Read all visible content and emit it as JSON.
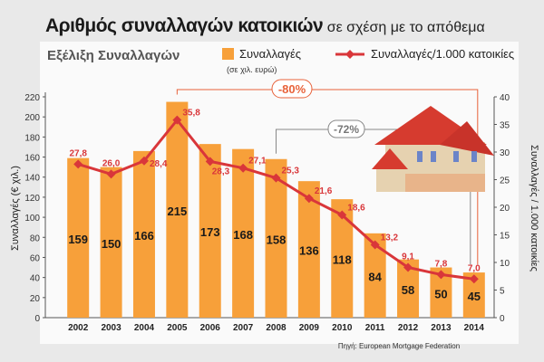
{
  "title_bold": "Αριθμός συναλλαγών κατοικιών",
  "title_rest": "σε σχέση με το απόθεμα",
  "chart_data": {
    "type": "bar+line",
    "subtitle": "Εξέλιξη Συναλλαγών",
    "categories": [
      "2002",
      "2003",
      "2004",
      "2005",
      "2006",
      "2007",
      "2008",
      "2009",
      "2010",
      "2011",
      "2012",
      "2013",
      "2014"
    ],
    "series": [
      {
        "name": "Συναλλαγές",
        "name_note": "(σε χιλ. ευρώ)",
        "type": "bar",
        "axis": "left",
        "color": "#f7a03a",
        "values": [
          159,
          150,
          166,
          215,
          173,
          168,
          158,
          136,
          118,
          84,
          58,
          50,
          45
        ]
      },
      {
        "name": "Συναλλαγές/1.000 κατοικίες",
        "type": "line",
        "axis": "right",
        "color": "#d9363a",
        "values": [
          27.8,
          26.0,
          28.4,
          35.8,
          28.3,
          27.1,
          25.3,
          21.6,
          18.6,
          13.2,
          9.1,
          7.8,
          7.0
        ],
        "labels": [
          "27,8",
          "26,0",
          "28,4",
          "35,8",
          "28,3",
          "27,1",
          "25,3",
          "21,6",
          "18,6",
          "13,2",
          "9,1",
          "7,8",
          "7,0"
        ]
      }
    ],
    "ylabel": "Συναλλαγές (€ χιλ.)",
    "ylim": [
      0,
      220
    ],
    "yticks": [
      0,
      20,
      40,
      60,
      80,
      100,
      120,
      140,
      160,
      180,
      200,
      220
    ],
    "y2label": "Συναλλαγές  / 1.000 κατοικίες",
    "y2lim": [
      0,
      40
    ],
    "y2ticks": [
      0,
      5,
      10,
      15,
      20,
      25,
      30,
      35,
      40
    ],
    "annotations": [
      {
        "text": "-80%",
        "from": "2005",
        "to": "2014",
        "color": "#e8623a"
      },
      {
        "text": "-72%",
        "from": "2008",
        "to": "2014",
        "color": "#888888"
      }
    ],
    "legend": "top",
    "source": "Πηγή: European Mortgage Federation"
  }
}
